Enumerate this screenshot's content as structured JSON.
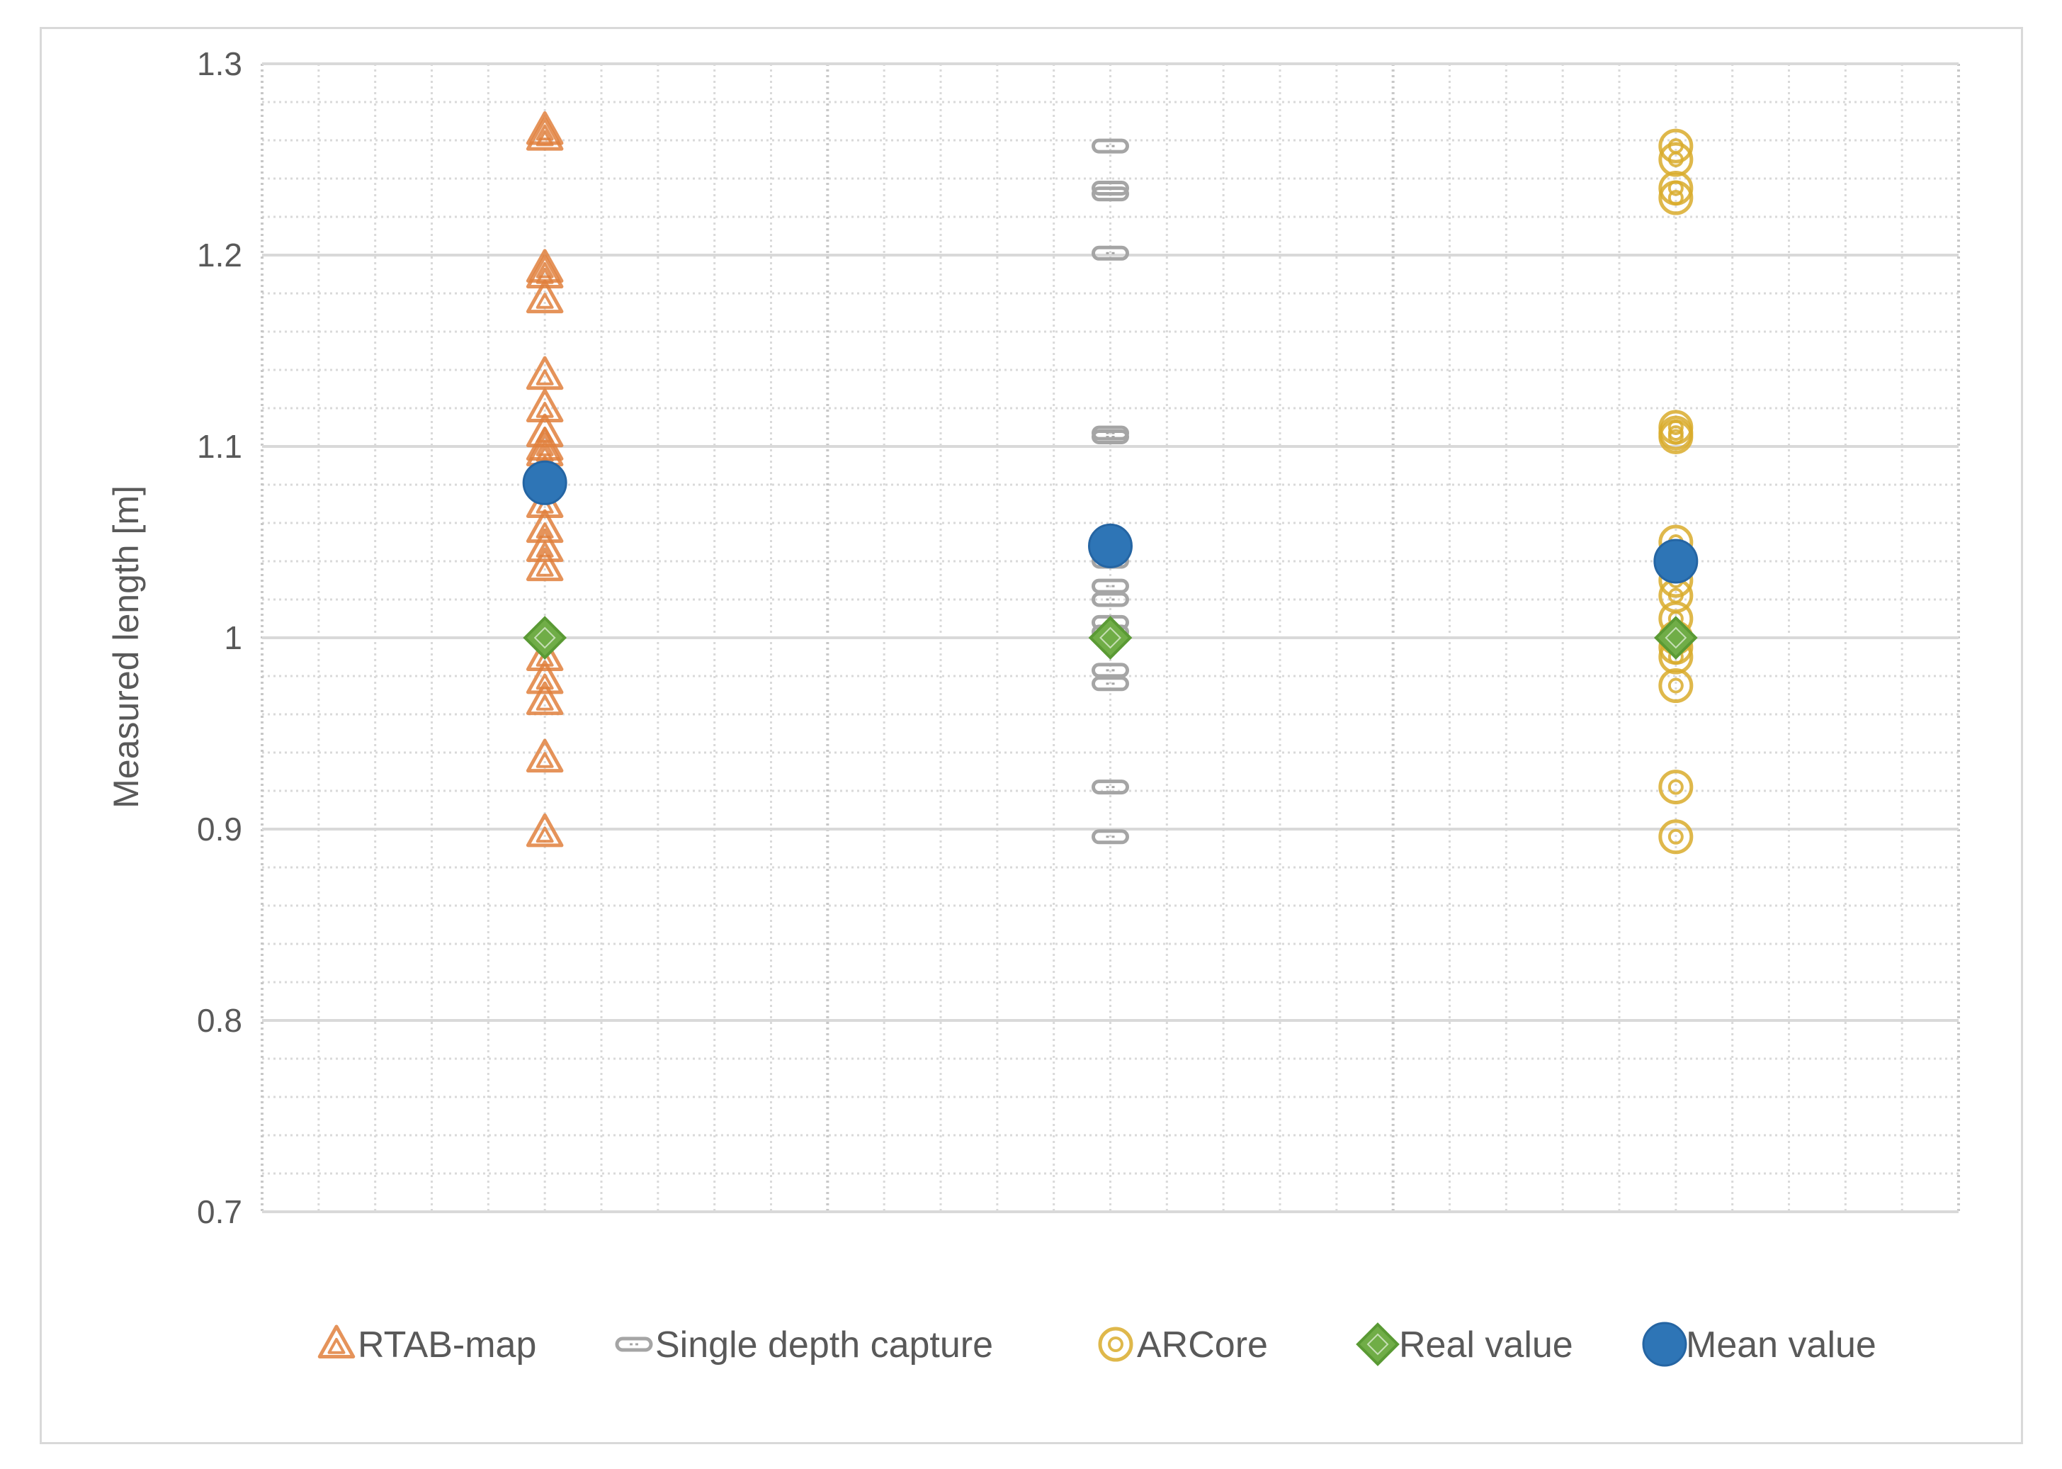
{
  "chart_data": {
    "type": "scatter",
    "title": "",
    "xlabel": "",
    "ylabel": "Measured length [m]",
    "ylim": [
      0.7,
      1.3
    ],
    "yticks": [
      0.7,
      0.8,
      0.9,
      1,
      1.1,
      1.2,
      1.3
    ],
    "ytick_labels": [
      "0.7",
      "0.8",
      "0.9",
      "1",
      "1.1",
      "1.2",
      "1.3"
    ],
    "xlim": [
      0,
      3
    ],
    "grid": true,
    "legend_position": "bottom",
    "colors": {
      "rtab": "#e0803d",
      "single": "#a5a5a5",
      "arcore": "#d9ac2c",
      "real": "#70ad47",
      "mean": "#2e75b6",
      "grid_major": "#d9d9d9",
      "grid_minor": "#d9d9d9"
    },
    "series": [
      {
        "name": "RTAB-map",
        "marker": "triangle",
        "x": 0.5,
        "values": [
          1.265,
          1.262,
          1.193,
          1.19,
          1.177,
          1.137,
          1.12,
          1.107,
          1.1,
          1.097,
          1.085,
          1.07,
          1.057,
          1.047,
          1.037,
          0.99,
          0.978,
          0.967,
          0.937,
          0.898
        ]
      },
      {
        "name": "Single depth capture",
        "marker": "dash",
        "x": 1.5,
        "values": [
          1.257,
          1.235,
          1.232,
          1.201,
          1.107,
          1.105,
          1.047,
          1.04,
          1.027,
          1.02,
          1.008,
          1.003,
          1.0,
          0.983,
          0.976,
          0.922,
          0.896
        ]
      },
      {
        "name": "ARCore",
        "marker": "target",
        "x": 2.5,
        "values": [
          1.257,
          1.25,
          1.235,
          1.23,
          1.11,
          1.107,
          1.105,
          1.05,
          1.03,
          1.022,
          1.01,
          1.0,
          0.995,
          0.99,
          0.975,
          0.922,
          0.896
        ]
      },
      {
        "name": "Real value",
        "marker": "diamond",
        "x": [
          0.5,
          1.5,
          2.5
        ],
        "values": [
          1.0,
          1.0,
          1.0
        ]
      },
      {
        "name": "Mean value",
        "marker": "circle",
        "x": [
          0.5,
          1.5,
          2.5
        ],
        "values": [
          1.081,
          1.048,
          1.04
        ]
      }
    ]
  }
}
